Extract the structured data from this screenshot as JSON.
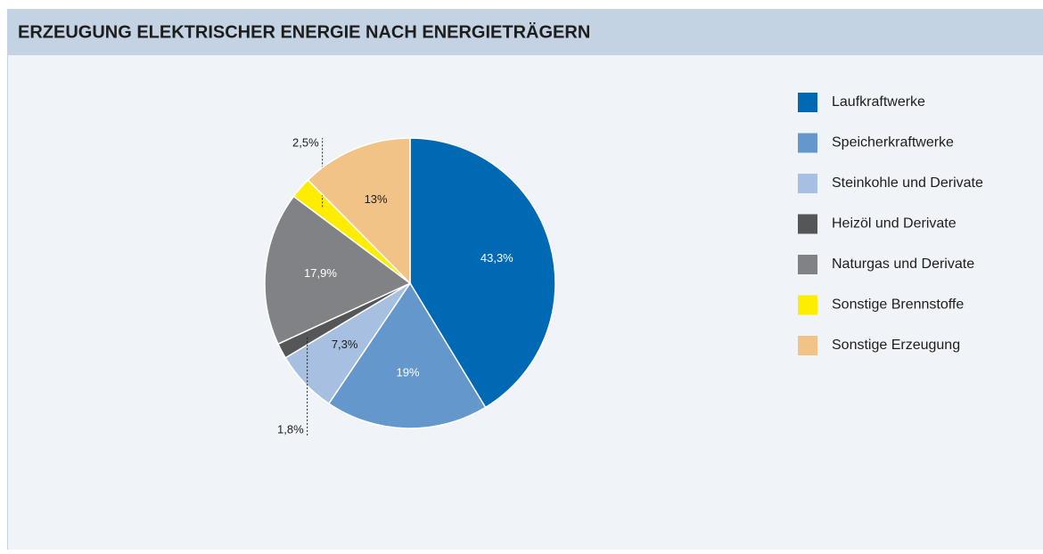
{
  "chart_data": {
    "type": "pie",
    "title": "ERZEUGUNG ELEKTRISCHER ENERGIE NACH ENERGIETRÄGERN",
    "categories": [
      "Laufkraftwerke",
      "Speicherkraftwerke",
      "Steinkohle und Derivate",
      "Heizöl und Derivate",
      "Naturgas und Derivate",
      "Sonstige Brennstoffe",
      "Sonstige Erzeugung"
    ],
    "values": [
      43.3,
      19,
      7.3,
      1.8,
      17.9,
      2.5,
      13
    ],
    "value_labels": [
      "43,3%",
      "19%",
      "7,3%",
      "1,8%",
      "17,9%",
      "2,5%",
      "13%"
    ],
    "colors": [
      "#0069b4",
      "#6497cb",
      "#a7bfe0",
      "#555658",
      "#818285",
      "#ffed00",
      "#f2c387"
    ]
  }
}
